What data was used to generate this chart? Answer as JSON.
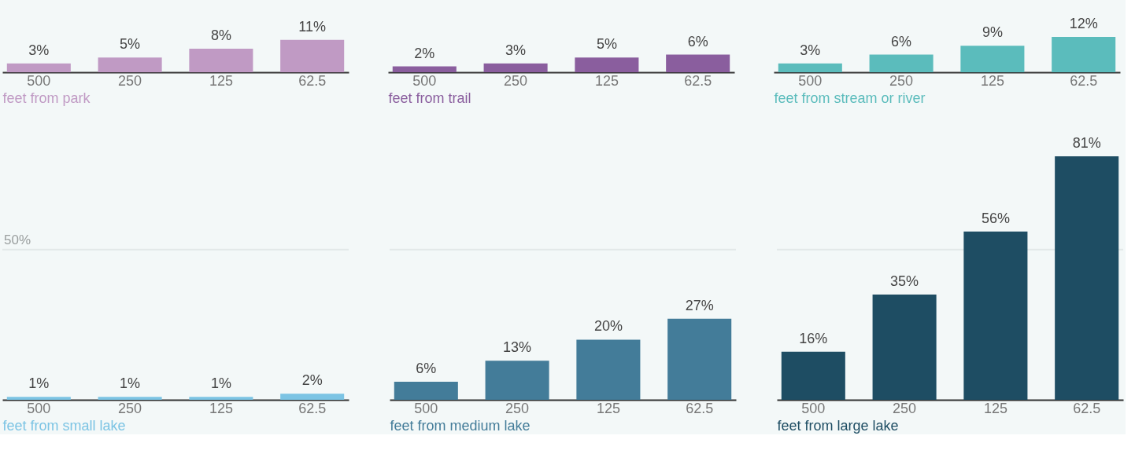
{
  "chart_data": [
    {
      "type": "bar",
      "xlabel": "feet from park",
      "categories": [
        "500",
        "250",
        "125",
        "62.5"
      ],
      "values": [
        3,
        5,
        8,
        11
      ],
      "value_labels": [
        "3%",
        "5%",
        "8%",
        "11%"
      ],
      "color": "#c09ac4",
      "ylim": [
        0,
        24
      ],
      "tick_labels": "x"
    },
    {
      "type": "bar",
      "xlabel": "feet from trail",
      "categories": [
        "500",
        "250",
        "125",
        "62.5"
      ],
      "values": [
        2,
        3,
        5,
        6
      ],
      "value_labels": [
        "2%",
        "3%",
        "5%",
        "6%"
      ],
      "color": "#8a5e9e",
      "ylim": [
        0,
        24
      ],
      "tick_labels": "x"
    },
    {
      "type": "bar",
      "xlabel": "feet from stream or river",
      "categories": [
        "500",
        "250",
        "125",
        "62.5"
      ],
      "values": [
        3,
        6,
        9,
        12
      ],
      "value_labels": [
        "3%",
        "6%",
        "9%",
        "12%"
      ],
      "color": "#5bbcbc",
      "ylim": [
        0,
        24
      ],
      "tick_labels": "x"
    },
    {
      "type": "bar",
      "xlabel": "feet from small lake",
      "categories": [
        "500",
        "250",
        "125",
        "62.5"
      ],
      "values": [
        1,
        1,
        1,
        2
      ],
      "value_labels": [
        "1%",
        "1%",
        "1%",
        "2%"
      ],
      "color": "#7cc4e4",
      "ref_lines": [
        {
          "axis": "y",
          "value": 50,
          "label": "50%",
          "color": "#e2e8e8"
        }
      ],
      "tick_labels": "x"
    },
    {
      "type": "bar",
      "xlabel": "feet from medium lake",
      "categories": [
        "500",
        "250",
        "125",
        "62.5"
      ],
      "values": [
        6,
        13,
        20,
        27
      ],
      "value_labels": [
        "6%",
        "13%",
        "20%",
        "27%"
      ],
      "color": "#437c99",
      "ref_lines": [
        {
          "axis": "y",
          "value": 50,
          "label": null,
          "color": "#e2e8e8"
        }
      ],
      "tick_labels": "x"
    },
    {
      "type": "bar",
      "xlabel": "feet from large lake",
      "categories": [
        "500",
        "250",
        "125",
        "62.5"
      ],
      "values": [
        16,
        35,
        56,
        81
      ],
      "value_labels": [
        "16%",
        "35%",
        "56%",
        "81%"
      ],
      "color": "#1e4d63",
      "ref_lines": [
        {
          "axis": "y",
          "value": 50,
          "label": null,
          "color": "#e2e8e8"
        }
      ],
      "tick_labels": "x"
    }
  ]
}
